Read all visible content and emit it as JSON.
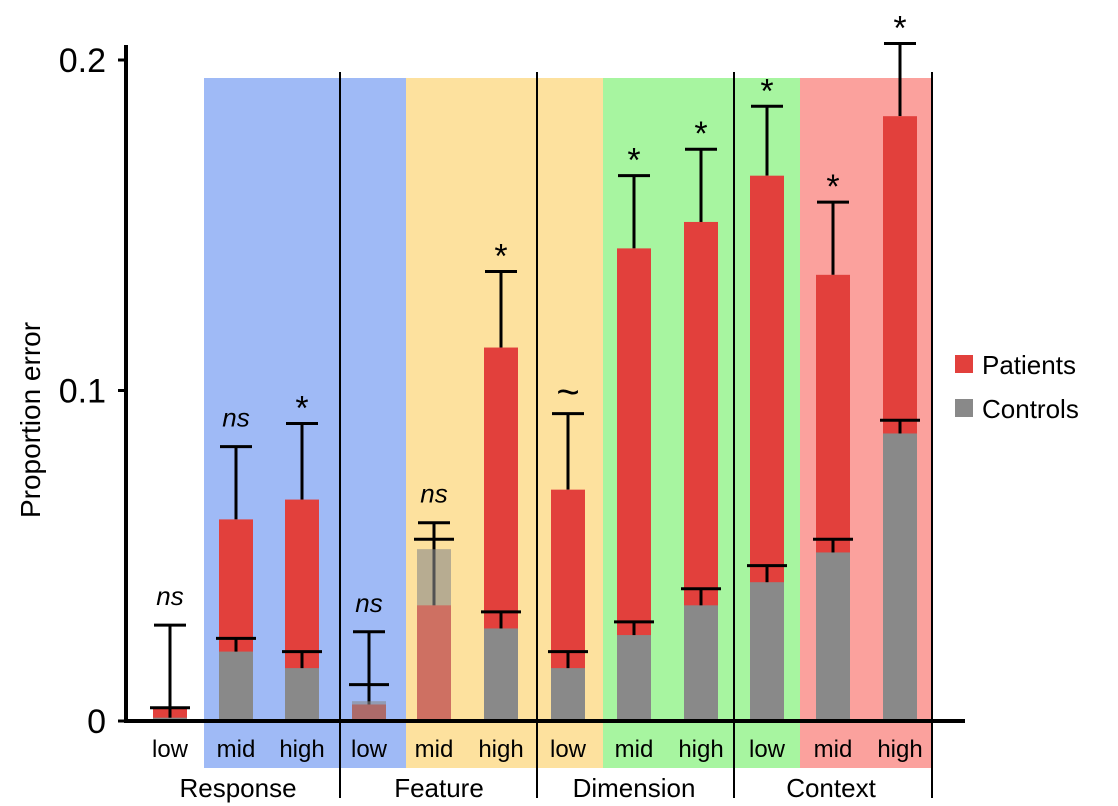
{
  "chart_data": {
    "type": "bar",
    "ylabel": "Proportion error",
    "ylim": [
      0,
      0.2
    ],
    "yticks": [
      {
        "value": 0,
        "label": "0"
      },
      {
        "value": 0.1,
        "label": "0.1"
      },
      {
        "value": 0.2,
        "label": "0.2"
      }
    ],
    "legend_position": "right",
    "groups": [
      "Response",
      "Feature",
      "Dimension",
      "Context"
    ],
    "categories": [
      "low",
      "mid",
      "high",
      "low",
      "mid",
      "high",
      "low",
      "mid",
      "high",
      "low",
      "mid",
      "high"
    ],
    "group_colors": [
      "#9fbaf6",
      "#fde19e",
      "#a7f5a0",
      "#fba19d"
    ],
    "series": [
      {
        "name": "Patients",
        "color": "#e2403c",
        "values": [
          0.004,
          0.061,
          0.067,
          0.005,
          0.035,
          0.113,
          0.07,
          0.143,
          0.151,
          0.165,
          0.135,
          0.183
        ],
        "err_upper": [
          0.029,
          0.083,
          0.09,
          0.027,
          0.06,
          0.136,
          0.093,
          0.165,
          0.173,
          0.186,
          0.157,
          0.205
        ]
      },
      {
        "name": "Controls",
        "color": "#898989",
        "values": [
          0.001,
          0.021,
          0.016,
          0.006,
          0.052,
          0.028,
          0.016,
          0.026,
          0.035,
          0.042,
          0.051,
          0.087
        ],
        "err_upper": [
          0.004,
          0.025,
          0.021,
          0.011,
          0.055,
          0.033,
          0.021,
          0.03,
          0.04,
          0.047,
          0.055,
          0.091
        ]
      }
    ],
    "significance": [
      "ns",
      "ns",
      "*",
      "ns",
      "ns",
      "*",
      "~",
      "*",
      "*",
      "*",
      "*",
      "*"
    ]
  }
}
